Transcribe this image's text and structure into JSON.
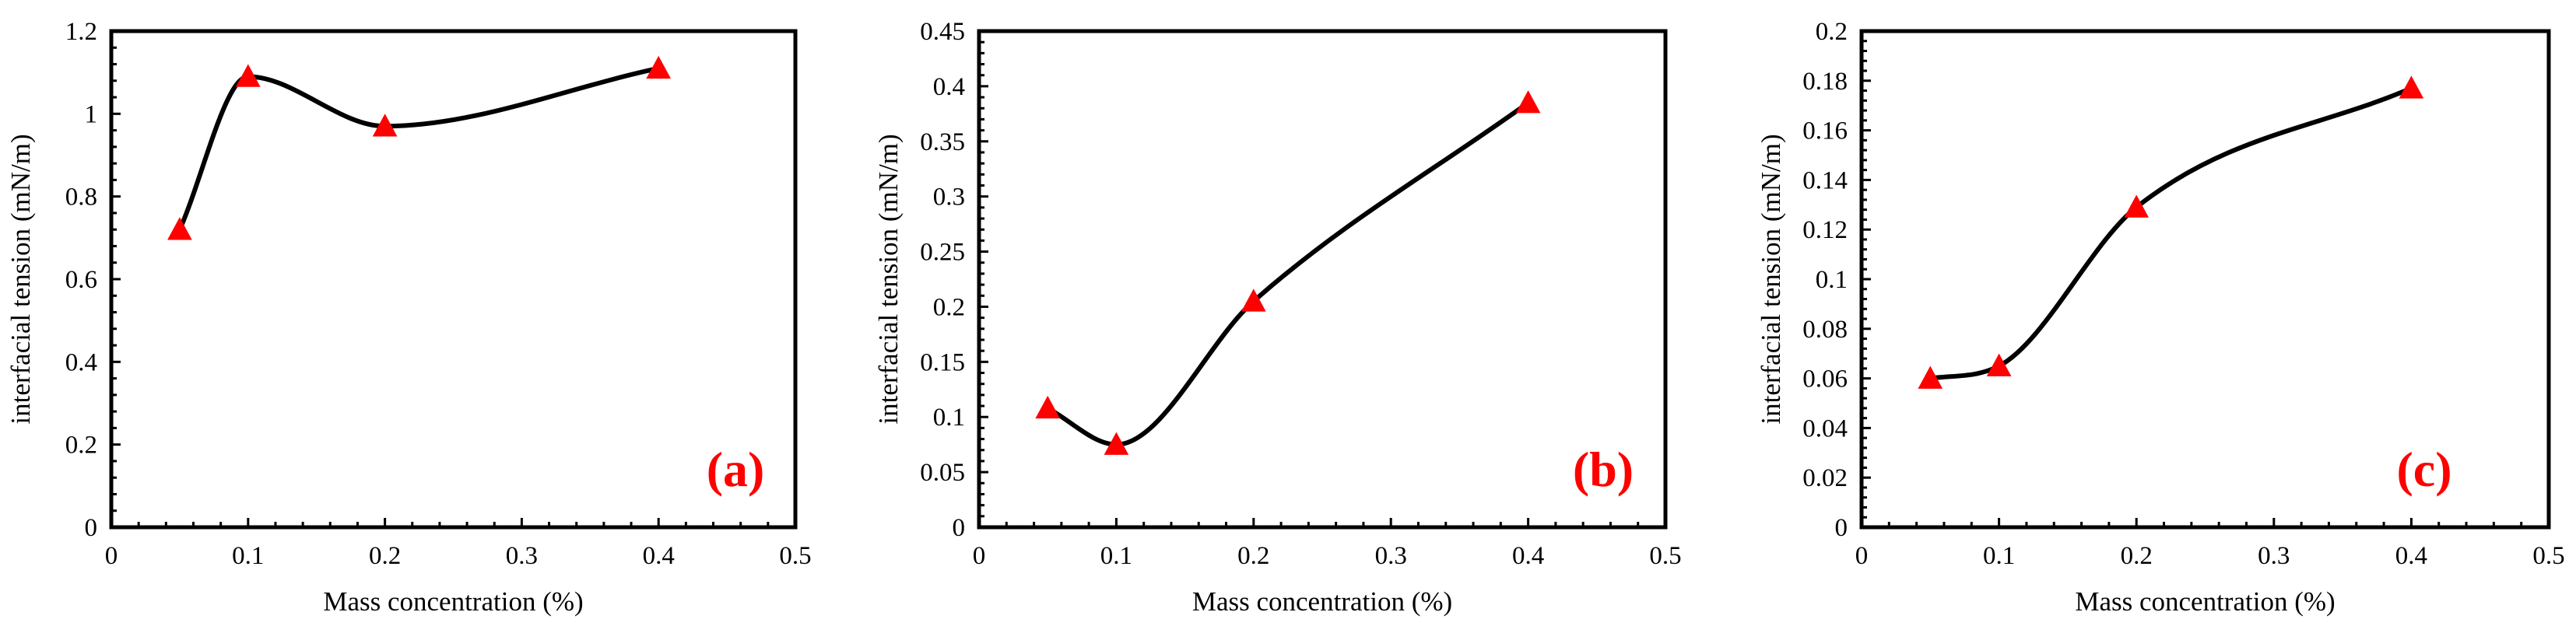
{
  "colors": {
    "marker": "#ff0000",
    "line": "#000000",
    "label": "#ff0000"
  },
  "chart_data": [
    {
      "type": "line",
      "panel": "(a)",
      "xlabel": "Mass concentration (%)",
      "ylabel": "interfacial tension (mN/m)",
      "xlim": [
        0,
        0.5
      ],
      "ylim": [
        0,
        1.2
      ],
      "xticks": [
        0,
        0.1,
        0.2,
        0.3,
        0.4,
        0.5
      ],
      "xtick_labels": [
        "0",
        "0.1",
        "0.2",
        "0.3",
        "0.4",
        "0.5"
      ],
      "yticks": [
        0,
        0.2,
        0.4,
        0.6,
        0.8,
        1,
        1.2
      ],
      "ytick_labels": [
        "0",
        "0.2",
        "0.4",
        "0.6",
        "0.8",
        "1",
        "1.2"
      ],
      "x": [
        0.05,
        0.1,
        0.2,
        0.4
      ],
      "y": [
        0.72,
        1.09,
        0.97,
        1.11
      ],
      "marker": "triangle",
      "smooth": true
    },
    {
      "type": "line",
      "panel": "(b)",
      "xlabel": "Mass concentration (%)",
      "ylabel": "interfacial tension (mN/m)",
      "xlim": [
        0,
        0.5
      ],
      "ylim": [
        0,
        0.45
      ],
      "xticks": [
        0,
        0.1,
        0.2,
        0.3,
        0.4,
        0.5
      ],
      "xtick_labels": [
        "0",
        "0.1",
        "0.2",
        "0.3",
        "0.4",
        "0.5"
      ],
      "yticks": [
        0,
        0.05,
        0.1,
        0.15,
        0.2,
        0.25,
        0.3,
        0.35,
        0.4,
        0.45
      ],
      "ytick_labels": [
        "0",
        "0.05",
        "0.1",
        "0.15",
        "0.2",
        "0.25",
        "0.3",
        "0.35",
        "0.4",
        "0.45"
      ],
      "x": [
        0.05,
        0.1,
        0.2,
        0.4
      ],
      "y": [
        0.108,
        0.075,
        0.205,
        0.385
      ],
      "marker": "triangle",
      "smooth": true
    },
    {
      "type": "line",
      "panel": "(c)",
      "xlabel": "Mass concentration (%)",
      "ylabel": "interfacial tension (mN/m)",
      "xlim": [
        0,
        0.5
      ],
      "ylim": [
        0,
        0.2
      ],
      "xticks": [
        0,
        0.1,
        0.2,
        0.3,
        0.4,
        0.5
      ],
      "xtick_labels": [
        "0",
        "0.1",
        "0.2",
        "0.3",
        "0.4",
        "0.5"
      ],
      "yticks": [
        0,
        0.02,
        0.04,
        0.06,
        0.08,
        0.1,
        0.12,
        0.14,
        0.16,
        0.18,
        0.2
      ],
      "ytick_labels": [
        "0",
        "0.02",
        "0.04",
        "0.06",
        "0.08",
        "0.1",
        "0.12",
        "0.14",
        "0.16",
        "0.18",
        "0.2"
      ],
      "x": [
        0.05,
        0.1,
        0.2,
        0.4
      ],
      "y": [
        0.06,
        0.065,
        0.129,
        0.177
      ],
      "marker": "triangle",
      "smooth": true
    }
  ]
}
